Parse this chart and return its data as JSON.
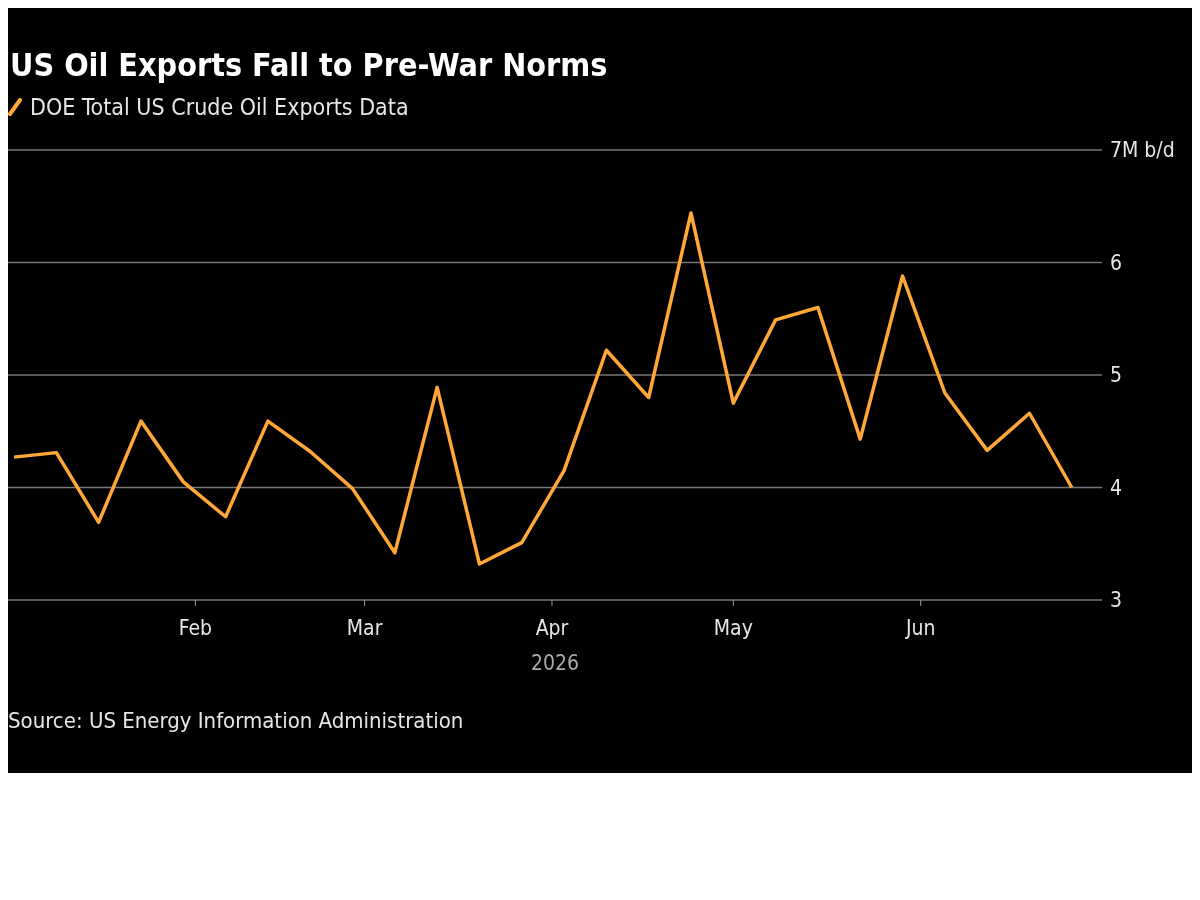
{
  "chart_data": {
    "type": "line",
    "title": "US Oil Exports Fall to Pre-War Norms",
    "xlabel": "2026",
    "x": [
      "2026-01-02",
      "2026-01-09",
      "2026-01-16",
      "2026-01-23",
      "2026-01-30",
      "2026-02-06",
      "2026-02-13",
      "2026-02-20",
      "2026-02-27",
      "2026-03-06",
      "2026-03-13",
      "2026-03-20",
      "2026-03-27",
      "2026-04-03",
      "2026-04-10",
      "2026-04-17",
      "2026-04-24",
      "2026-05-01",
      "2026-05-08",
      "2026-05-15",
      "2026-05-22",
      "2026-05-29",
      "2026-06-05",
      "2026-06-12",
      "2026-06-19",
      "2026-06-26"
    ],
    "series": [
      {
        "name": "DOE Total US Crude Oil Exports Data",
        "color": "#ffa838",
        "values": [
          4.27,
          4.31,
          3.69,
          4.59,
          4.05,
          3.74,
          4.59,
          4.32,
          3.99,
          3.42,
          4.89,
          3.32,
          3.51,
          4.15,
          5.22,
          4.8,
          6.44,
          4.75,
          5.49,
          5.6,
          4.43,
          5.88,
          4.84,
          4.33,
          4.66,
          4.0
        ]
      }
    ],
    "xlim": [
      "2026-01-01",
      "2026-07-01"
    ],
    "xticks": [
      {
        "value": "2026-02-01",
        "label": "Feb"
      },
      {
        "value": "2026-03-01",
        "label": "Mar"
      },
      {
        "value": "2026-04-01",
        "label": "Apr"
      },
      {
        "value": "2026-05-01",
        "label": "May"
      },
      {
        "value": "2026-06-01",
        "label": "Jun"
      }
    ],
    "ylim": [
      3,
      7
    ],
    "yticks": [
      3,
      4,
      5,
      6,
      {
        "value": 7,
        "label": "7M b/d"
      }
    ],
    "grid": "y",
    "legend": "top left",
    "marker": "none",
    "line_style": "solid",
    "annotations": [
      "Source: US Energy Information Administration"
    ]
  }
}
